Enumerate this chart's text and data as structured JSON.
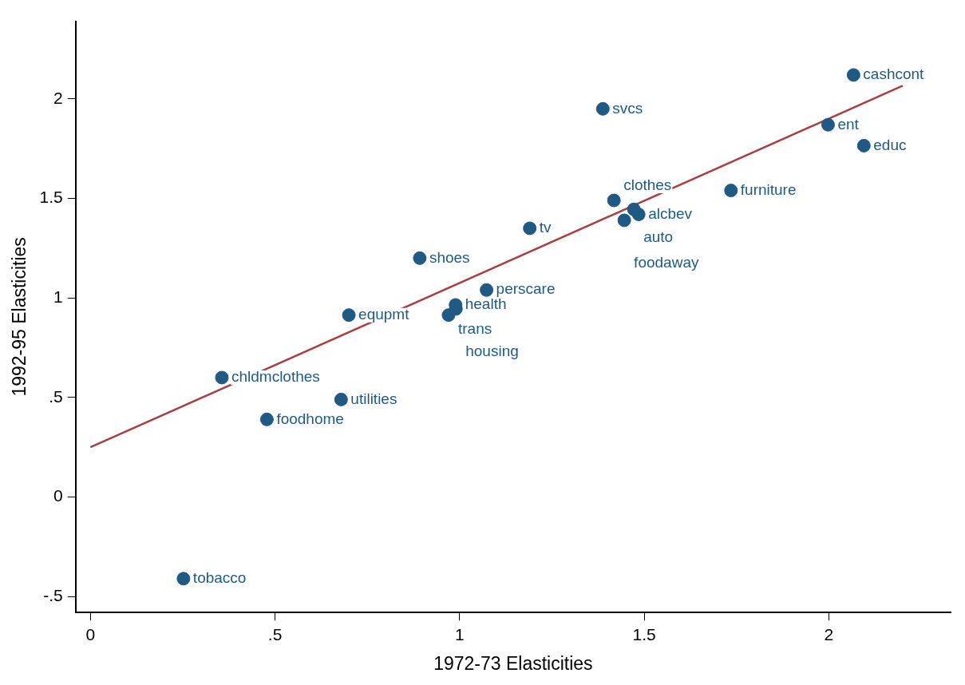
{
  "chart_data": {
    "type": "scatter",
    "xlabel": "1972-73 Elasticities",
    "ylabel": "1992-95 Elasticities",
    "xlim": [
      -0.04,
      2.33
    ],
    "ylim": [
      -0.58,
      2.39
    ],
    "xticks": [
      0,
      {
        "value": 0.5,
        "label": ".5"
      },
      1,
      {
        "value": 1.5,
        "label": "1.5"
      },
      2
    ],
    "yticks": [
      {
        "value": -0.5,
        "label": "-.5"
      },
      0,
      {
        "value": 0.5,
        "label": ".5"
      },
      1,
      {
        "value": 1.5,
        "label": "1.5"
      },
      2
    ],
    "grid": false,
    "legend": false,
    "marker": "circle",
    "series": [
      {
        "type": "scatter",
        "color": "#1f5a85",
        "x": [
          0.252,
          0.356,
          0.478,
          0.679,
          0.7,
          0.892,
          0.97,
          0.989,
          0.99,
          1.073,
          1.19,
          1.388,
          1.418,
          1.472,
          1.485,
          1.446,
          1.735,
          1.998,
          2.095,
          2.067
        ],
        "values": [
          -0.41,
          0.6,
          0.39,
          0.49,
          0.914,
          1.2,
          0.914,
          0.965,
          0.945,
          1.04,
          1.35,
          1.95,
          1.49,
          1.445,
          1.42,
          1.39,
          1.54,
          1.87,
          1.765,
          2.12
        ]
      },
      {
        "type": "line",
        "color": "#a83f42",
        "x": [
          0,
          2.2
        ],
        "values": [
          0.25,
          2.066
        ],
        "marker": "none"
      }
    ],
    "annotations": [
      {
        "text": "tobacco",
        "x": 0.252,
        "y": -0.41
      },
      {
        "text": "chldmclothes",
        "x": 0.356,
        "y": 0.6
      },
      {
        "text": "foodhome",
        "x": 0.478,
        "y": 0.39
      },
      {
        "text": "utilities",
        "x": 0.679,
        "y": 0.49
      },
      {
        "text": "equpmt",
        "x": 0.7,
        "y": 0.914
      },
      {
        "text": "shoes",
        "x": 0.892,
        "y": 1.2
      },
      {
        "text": "trans",
        "x": 0.97,
        "y": 0.914
      },
      {
        "text": "health",
        "x": 0.989,
        "y": 0.965
      },
      {
        "text": "housing",
        "x": 0.99,
        "y": 0.945
      },
      {
        "text": "perscare",
        "x": 1.073,
        "y": 1.04
      },
      {
        "text": "tv",
        "x": 1.19,
        "y": 1.35
      },
      {
        "text": "svcs",
        "x": 1.388,
        "y": 1.95
      },
      {
        "text": "clothes",
        "x": 1.418,
        "y": 1.49
      },
      {
        "text": "auto",
        "x": 1.472,
        "y": 1.445
      },
      {
        "text": "alcbev",
        "x": 1.485,
        "y": 1.42
      },
      {
        "text": "foodaway",
        "x": 1.446,
        "y": 1.39
      },
      {
        "text": "furniture",
        "x": 1.735,
        "y": 1.54
      },
      {
        "text": "ent",
        "x": 1.998,
        "y": 1.87
      },
      {
        "text": "educ",
        "x": 2.095,
        "y": 1.765
      },
      {
        "text": "cashcont",
        "x": 2.067,
        "y": 2.12
      }
    ]
  }
}
